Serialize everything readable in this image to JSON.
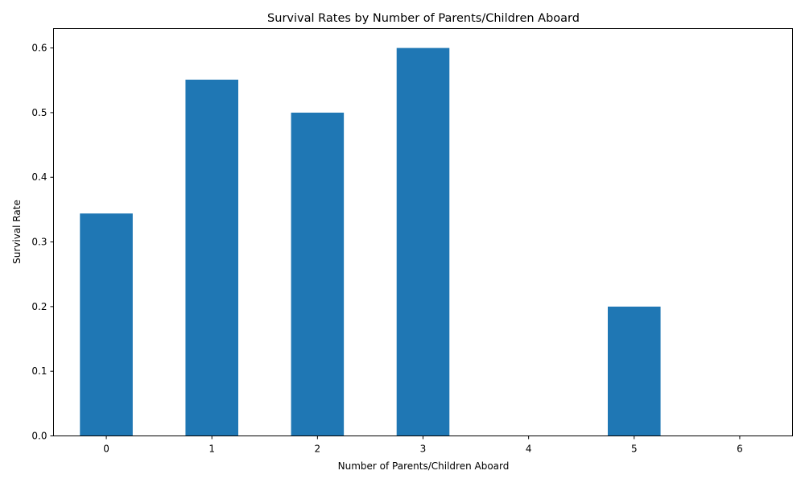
{
  "chart_data": {
    "type": "bar",
    "title": "Survival Rates by Number of Parents/Children Aboard",
    "xlabel": "Number of Parents/Children Aboard",
    "ylabel": "Survival Rate",
    "categories": [
      "0",
      "1",
      "2",
      "3",
      "4",
      "5",
      "6"
    ],
    "values": [
      0.344,
      0.551,
      0.5,
      0.6,
      0.0,
      0.2,
      0.0
    ],
    "ylim": [
      0,
      0.63
    ],
    "yticks": [
      "0.0",
      "0.1",
      "0.2",
      "0.3",
      "0.4",
      "0.5",
      "0.6"
    ],
    "grid": false,
    "legend": "none",
    "bar_color": "#1f77b4"
  }
}
